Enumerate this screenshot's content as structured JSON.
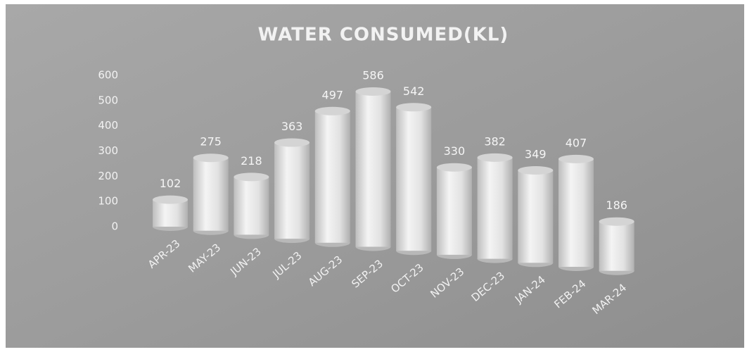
{
  "chart_data": {
    "type": "bar",
    "title": "WATER CONSUMED(KL)",
    "categories": [
      "APR-23",
      "MAY-23",
      "JUN-23",
      "JUL-23",
      "AUG-23",
      "SEP-23",
      "OCT-23",
      "NOV-23",
      "DEC-23",
      "JAN-24",
      "FEB-24",
      "MAR-24"
    ],
    "values": [
      102,
      275,
      218,
      363,
      497,
      586,
      542,
      330,
      382,
      349,
      407,
      186
    ],
    "color": "#e6e6e6",
    "ylim": [
      0,
      600
    ],
    "yticks": [
      0,
      100,
      200,
      300,
      400,
      500,
      600
    ]
  }
}
